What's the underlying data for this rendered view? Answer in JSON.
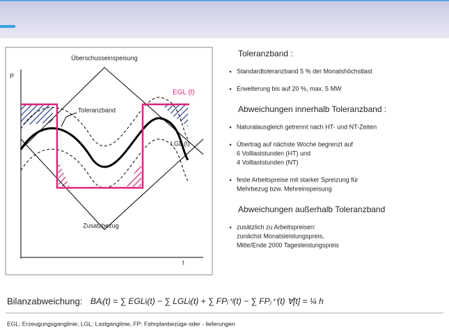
{
  "diagram": {
    "top_label": "Überschusseinspeisung",
    "p_axis": "P",
    "t_axis": "t",
    "egl": "EGL (t)",
    "tolerance": "Toleranzband",
    "lgl": "LGL (t)",
    "bottom_label": "Zusatzbezug"
  },
  "sections": [
    {
      "heading": "Toleranzband :",
      "bullets": [
        [
          "Standardtoleranzband 5 % der Monatshöchstlast"
        ],
        [
          "Erweiterung bis auf 20 %, max. 5 MW"
        ]
      ]
    },
    {
      "heading": "Abweichungen innerhalb Toleranzband :",
      "bullets": [
        [
          "Naturalausgleich getrennt nach HT- und NT-Zeiten"
        ],
        [
          "Übertrag auf nächste Woche begrenzt auf",
          "6 Volllaststunden (HT) und",
          "4 Volllaststunden (NT)"
        ],
        [
          "feste Arbeitspreise mit starker Spreizung für",
          "Mehrbezug bzw. Mehreinspeisung"
        ]
      ]
    },
    {
      "heading": "Abweichungen außerhalb Toleranzband",
      "bullets": [
        [
          "zusätzlich zu Arbeitspreisen:",
          "zunächst Monatsleistungspreis,",
          "Mitte/Ende 2000 Tagesleistungspreis"
        ]
      ]
    }
  ],
  "formula": {
    "label": "Bilanzabweichung:",
    "expression": "BAᵢ(t) = ∑ EGLʲᵢ(t) − ∑ LGLʲᵢ(t) + ∑ FPᵢ⁺ʲ(t) − ∑ FPⱼ⁺ⁱ(t)   ∀[t] = ¼ h"
  },
  "footer": "EGL: Erzeugungsganglinie, LGL: Lastganglinie, FP: Fahrplanbezüge oder - lieferungen"
}
